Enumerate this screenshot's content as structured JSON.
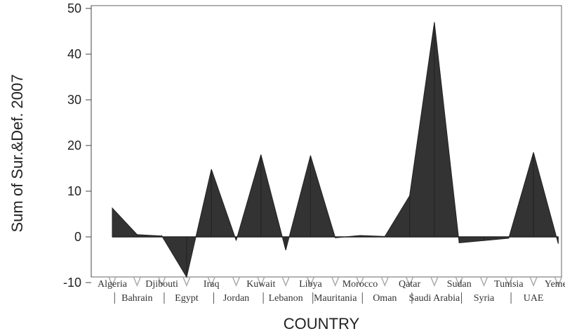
{
  "chart_data": {
    "type": "area",
    "title": "",
    "xlabel": "COUNTRY",
    "ylabel": "Sum of Sur.&Def. 2007",
    "ylim": [
      -10,
      50
    ],
    "yticks": [
      -10,
      0,
      10,
      20,
      30,
      40,
      50
    ],
    "grid": false,
    "categories": [
      "Algeria",
      "Bahrain",
      "Djibouti",
      "Egypt",
      "Iraq",
      "Jordan",
      "Kuwait",
      "Lebanon",
      "Libya",
      "Mauritania",
      "Morocco",
      "Oman",
      "Qatar",
      "Saudi Arabia",
      "Sudan",
      "Syria",
      "Tunisia",
      "UAE",
      "Yemen"
    ],
    "series": [
      {
        "values": [
          6.3,
          0.5,
          0.2,
          -8.8,
          14.8,
          -0.8,
          18.0,
          -2.9,
          17.8,
          -0.2,
          0.3,
          0.1,
          9.0,
          47.0,
          -1.3,
          -0.8,
          -0.3,
          18.5,
          -1.5
        ],
        "color": "#333333"
      }
    ]
  }
}
